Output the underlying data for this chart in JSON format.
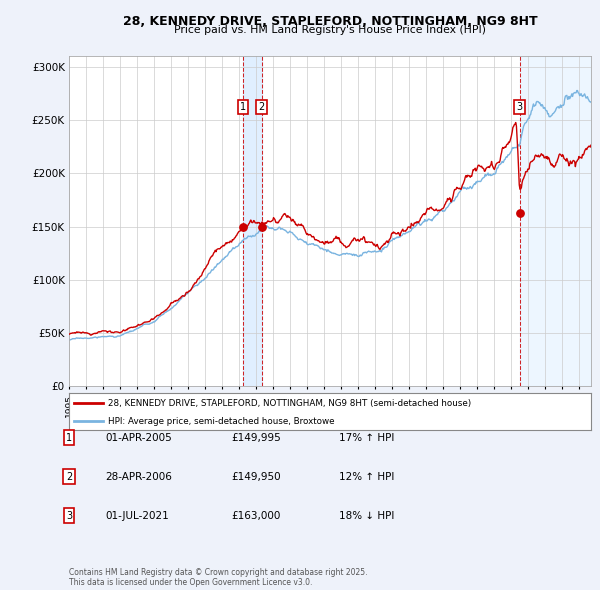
{
  "title": "28, KENNEDY DRIVE, STAPLEFORD, NOTTINGHAM, NG9 8HT",
  "subtitle": "Price paid vs. HM Land Registry's House Price Index (HPI)",
  "legend_entry1": "28, KENNEDY DRIVE, STAPLEFORD, NOTTINGHAM, NG9 8HT (semi-detached house)",
  "legend_entry2": "HPI: Average price, semi-detached house, Broxtowe",
  "footer": "Contains HM Land Registry data © Crown copyright and database right 2025.\nThis data is licensed under the Open Government Licence v3.0.",
  "table_entries": [
    {
      "num": "1",
      "date": "01-APR-2005",
      "price": "£149,995",
      "change": "17% ↑ HPI"
    },
    {
      "num": "2",
      "date": "28-APR-2006",
      "price": "£149,950",
      "change": "12% ↑ HPI"
    },
    {
      "num": "3",
      "date": "01-JUL-2021",
      "price": "£163,000",
      "change": "18% ↓ HPI"
    }
  ],
  "sale1_x": 2005.25,
  "sale2_x": 2006.33,
  "sale3_x": 2021.5,
  "sale1_y": 149995,
  "sale2_y": 149950,
  "sale3_y": 163000,
  "background_color": "#eef2fa",
  "plot_bg": "#ffffff",
  "red_color": "#cc0000",
  "blue_color": "#7ab4e0",
  "shade_color": "#ddeeff",
  "ylim_min": 0,
  "ylim_max": 310000,
  "yticks": [
    0,
    50000,
    100000,
    150000,
    200000,
    250000,
    300000
  ],
  "ytick_labels": [
    "£0",
    "£50K",
    "£100K",
    "£150K",
    "£200K",
    "£250K",
    "£300K"
  ],
  "xmin": 1995.0,
  "xmax": 2025.7
}
